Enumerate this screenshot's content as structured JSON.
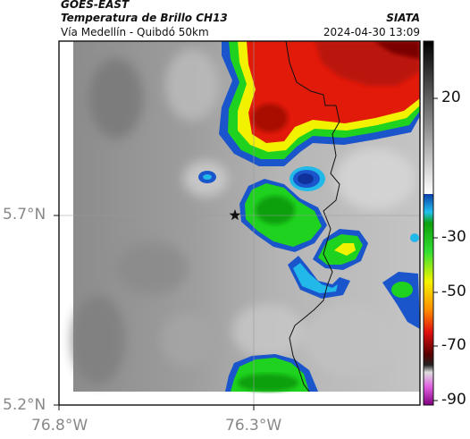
{
  "header": {
    "satellite": "GOES-EAST",
    "product": "Temperatura de Brillo CH13",
    "region": "Vía Medellín - Quibdó 50km",
    "agency": "SIATA",
    "datetime": "2024-04-30 13:09"
  },
  "axes": {
    "lat_ticks": [
      "5.7°N",
      "5.2°N"
    ],
    "lon_ticks": [
      "76.8°W",
      "76.3°W"
    ]
  },
  "colorbar": {
    "ticks": [
      "20",
      "-30",
      "-50",
      "-70",
      "-90"
    ]
  },
  "map": {
    "point_marker": "star-icon",
    "colors": {
      "cold_green": "#1fd21f",
      "yellow": "#f2f200",
      "red": "#e21a0a",
      "dark_red": "#9a0a0a",
      "blue": "#1a55cc",
      "cyan": "#22b8e8",
      "background_gray": "#9a9a9a"
    }
  }
}
